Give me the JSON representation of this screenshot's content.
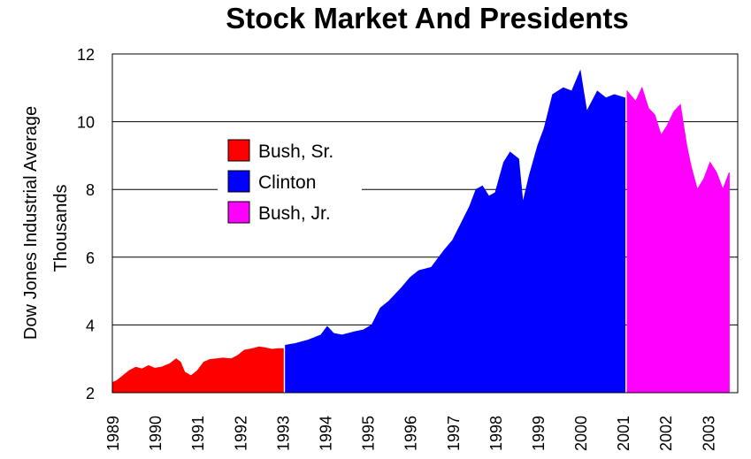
{
  "chart_data": {
    "type": "area",
    "title": "Stock Market And Presidents",
    "ylabel_line1": "Dow Jones Industrial Average",
    "ylabel_line2": "Thousands",
    "xlim": [
      1989.0,
      2003.7
    ],
    "ylim": [
      2,
      12
    ],
    "yticks": [
      2,
      4,
      6,
      8,
      10,
      12
    ],
    "xticks": [
      1989,
      1990,
      1991,
      1992,
      1993,
      1994,
      1995,
      1996,
      1997,
      1998,
      1999,
      2000,
      2001,
      2002,
      2003
    ],
    "grid": "horizontal",
    "legend_position": "upper-left",
    "series": [
      {
        "name": "Bush, Sr.",
        "color": "#ff0000",
        "x": [
          1989.0,
          1989.1,
          1989.25,
          1989.4,
          1989.55,
          1989.7,
          1989.85,
          1990.0,
          1990.15,
          1990.35,
          1990.5,
          1990.6,
          1990.7,
          1990.85,
          1991.0,
          1991.15,
          1991.3,
          1991.45,
          1991.6,
          1991.8,
          1991.95,
          1992.1,
          1992.3,
          1992.45,
          1992.6,
          1992.75,
          1992.9,
          1993.02
        ],
        "y": [
          2.3,
          2.35,
          2.5,
          2.65,
          2.75,
          2.7,
          2.8,
          2.72,
          2.75,
          2.85,
          3.0,
          2.9,
          2.6,
          2.5,
          2.65,
          2.9,
          2.98,
          3.0,
          3.02,
          3.0,
          3.1,
          3.25,
          3.3,
          3.35,
          3.32,
          3.28,
          3.3,
          3.3
        ]
      },
      {
        "name": "Clinton",
        "color": "#0000ff",
        "x": [
          1993.07,
          1993.3,
          1993.6,
          1993.9,
          1994.05,
          1994.2,
          1994.4,
          1994.7,
          1994.9,
          1995.1,
          1995.3,
          1995.5,
          1995.8,
          1996.0,
          1996.2,
          1996.5,
          1996.8,
          1997.0,
          1997.2,
          1997.4,
          1997.55,
          1997.7,
          1997.85,
          1998.0,
          1998.2,
          1998.35,
          1998.55,
          1998.65,
          1998.8,
          1999.0,
          1999.15,
          1999.35,
          1999.6,
          1999.8,
          2000.0,
          2000.15,
          2000.4,
          2000.6,
          2000.8,
          2001.05
        ],
        "y": [
          3.4,
          3.45,
          3.55,
          3.7,
          3.95,
          3.75,
          3.7,
          3.8,
          3.85,
          4.0,
          4.5,
          4.7,
          5.1,
          5.4,
          5.6,
          5.7,
          6.2,
          6.5,
          7.0,
          7.5,
          8.0,
          8.1,
          7.8,
          7.9,
          8.8,
          9.1,
          8.9,
          7.6,
          8.4,
          9.3,
          9.8,
          10.8,
          11.0,
          10.9,
          11.5,
          10.3,
          10.9,
          10.7,
          10.8,
          10.7
        ]
      },
      {
        "name": "Bush, Jr.",
        "color": "#ff00ff",
        "x": [
          2001.1,
          2001.3,
          2001.45,
          2001.6,
          2001.75,
          2001.9,
          2002.05,
          2002.2,
          2002.35,
          2002.5,
          2002.6,
          2002.75,
          2002.9,
          2003.05,
          2003.2,
          2003.35,
          2003.5
        ],
        "y": [
          10.9,
          10.6,
          11.0,
          10.4,
          10.2,
          9.6,
          9.9,
          10.3,
          10.5,
          9.3,
          8.7,
          8.0,
          8.3,
          8.8,
          8.5,
          8.0,
          8.5
        ]
      }
    ]
  }
}
